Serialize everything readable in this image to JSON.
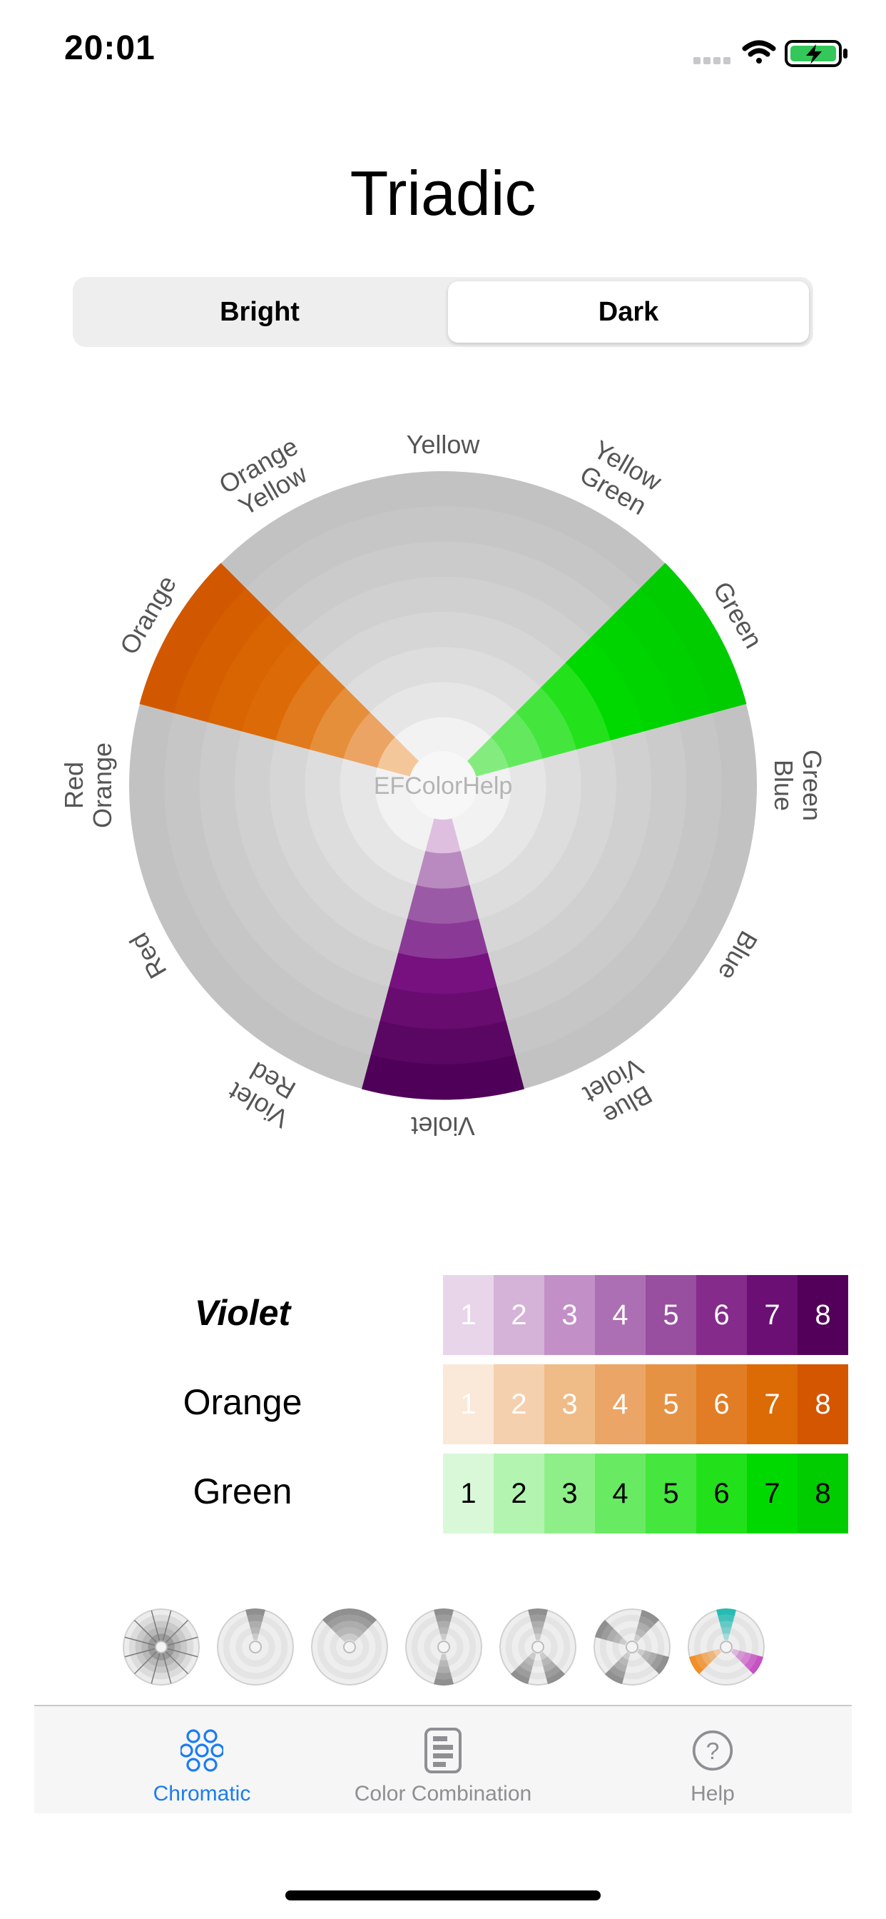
{
  "status_bar": {
    "time": "20:01"
  },
  "title": "Triadic",
  "segmented": {
    "options": [
      "Bright",
      "Dark"
    ],
    "selected": "Dark"
  },
  "wheel": {
    "center_label": "EFColorHelp",
    "labels": [
      {
        "id": "yellow",
        "lines": [
          "Yellow"
        ]
      },
      {
        "id": "yellow-green",
        "lines": [
          "Yellow",
          "Green"
        ]
      },
      {
        "id": "green",
        "lines": [
          "Green"
        ]
      },
      {
        "id": "green-blue",
        "lines": [
          "Green",
          "Blue"
        ]
      },
      {
        "id": "blue",
        "lines": [
          "Blue"
        ]
      },
      {
        "id": "blue-violet",
        "lines": [
          "Blue",
          "Violet"
        ]
      },
      {
        "id": "violet",
        "lines": [
          "Violet"
        ]
      },
      {
        "id": "violet-red",
        "lines": [
          "Violet",
          "Red"
        ]
      },
      {
        "id": "red",
        "lines": [
          "Red"
        ]
      },
      {
        "id": "red-orange",
        "lines": [
          "Red",
          "Orange"
        ]
      },
      {
        "id": "orange",
        "lines": [
          "Orange"
        ]
      },
      {
        "id": "orange-yellow",
        "lines": [
          "Orange",
          "Yellow"
        ]
      }
    ],
    "highlighted": [
      {
        "name": "Green",
        "sector": 2,
        "ring_colors": [
          "#84ec7f",
          "#64e95e",
          "#44e63d",
          "#23e21c",
          "#00d900",
          "#00d400",
          "#00d000",
          "#00cc00"
        ]
      },
      {
        "name": "Violet",
        "sector": 6,
        "ring_colors": [
          "#dfbfe0",
          "#b98abf",
          "#9b5aa5",
          "#8a3a96",
          "#76117f",
          "#680c70",
          "#5a0763",
          "#4f0058"
        ]
      },
      {
        "name": "Orange",
        "sector": 10,
        "ring_colors": [
          "#f4c79b",
          "#eba463",
          "#e68f3a",
          "#e17a1c",
          "#dc6a06",
          "#d86402",
          "#d55e00",
          "#d25800"
        ]
      }
    ],
    "gray_ring_colors": [
      "#f2f2f2",
      "#e6e6e6",
      "#dddddd",
      "#d6d6d6",
      "#d0d0d0",
      "#cbcbcb",
      "#c6c6c6",
      "#c2c2c2"
    ]
  },
  "color_rows": [
    {
      "label": "Violet",
      "selected": true,
      "cells": [
        {
          "n": "1",
          "bg": "#e8d5ea",
          "fg": "#ffffff"
        },
        {
          "n": "2",
          "bg": "#d5b2d8",
          "fg": "#ffffff"
        },
        {
          "n": "3",
          "bg": "#c290c7",
          "fg": "#ffffff"
        },
        {
          "n": "4",
          "bg": "#ad6fb3",
          "fg": "#ffffff"
        },
        {
          "n": "5",
          "bg": "#984fa0",
          "fg": "#ffffff"
        },
        {
          "n": "6",
          "bg": "#842b8c",
          "fg": "#ffffff"
        },
        {
          "n": "7",
          "bg": "#6b0f74",
          "fg": "#ffffff"
        },
        {
          "n": "8",
          "bg": "#520059",
          "fg": "#ffffff"
        }
      ]
    },
    {
      "label": "Orange",
      "selected": false,
      "cells": [
        {
          "n": "1",
          "bg": "#fae8d8",
          "fg": "#ffffff"
        },
        {
          "n": "2",
          "bg": "#f5d0ae",
          "fg": "#ffffff"
        },
        {
          "n": "3",
          "bg": "#efbb86",
          "fg": "#ffffff"
        },
        {
          "n": "4",
          "bg": "#eba566",
          "fg": "#ffffff"
        },
        {
          "n": "5",
          "bg": "#e69244",
          "fg": "#ffffff"
        },
        {
          "n": "6",
          "bg": "#e27d25",
          "fg": "#ffffff"
        },
        {
          "n": "7",
          "bg": "#dc6a05",
          "fg": "#ffffff"
        },
        {
          "n": "8",
          "bg": "#d45600",
          "fg": "#ffffff"
        }
      ]
    },
    {
      "label": "Green",
      "selected": false,
      "cells": [
        {
          "n": "1",
          "bg": "#d9f8d8",
          "fg": "#000000"
        },
        {
          "n": "2",
          "bg": "#b4f4b1",
          "fg": "#000000"
        },
        {
          "n": "3",
          "bg": "#8eef89",
          "fg": "#000000"
        },
        {
          "n": "4",
          "bg": "#69ea63",
          "fg": "#000000"
        },
        {
          "n": "5",
          "bg": "#45e63d",
          "fg": "#000000"
        },
        {
          "n": "6",
          "bg": "#22e11b",
          "fg": "#000000"
        },
        {
          "n": "7",
          "bg": "#00d900",
          "fg": "#000000"
        },
        {
          "n": "8",
          "bg": "#00cc00",
          "fg": "#000000"
        }
      ]
    }
  ],
  "wheel_selector": {
    "icons": [
      "monochrome-wheel-icon",
      "single-sector-wheel-icon",
      "analogous-wheel-icon",
      "complementary-wheel-icon",
      "split-complementary-wheel-icon",
      "tetradic-wheel-icon",
      "triadic-wheel-icon"
    ],
    "selected_index": 6
  },
  "tabbar": {
    "tabs": [
      {
        "label": "Chromatic",
        "icon": "chromatic-circles-icon",
        "active": true
      },
      {
        "label": "Color Combination",
        "icon": "document-icon",
        "active": false
      },
      {
        "label": "Help",
        "icon": "help-question-icon",
        "active": false
      }
    ],
    "active_color": "#1a7cf2",
    "inactive_color": "#8e8e93"
  }
}
